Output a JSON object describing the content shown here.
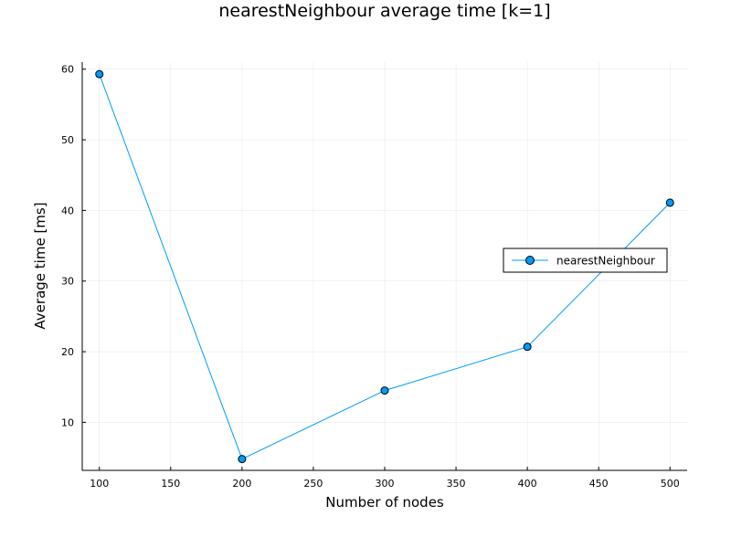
{
  "chart_data": {
    "type": "line",
    "title": "nearestNeighbour average time [k=1]",
    "xlabel": "Number of nodes",
    "ylabel": "Average time [ms]",
    "xlim": [
      88,
      512
    ],
    "ylim": [
      3.2,
      61
    ],
    "xticks": [
      100,
      150,
      200,
      250,
      300,
      350,
      400,
      450,
      500
    ],
    "yticks": [
      10,
      20,
      30,
      40,
      50,
      60
    ],
    "grid": true,
    "legend_position": "right",
    "series": [
      {
        "name": "nearestNeighbour",
        "color": "#009af9",
        "marker": "circle",
        "x": [
          100,
          200,
          300,
          400,
          500
        ],
        "y": [
          59.3,
          4.8,
          14.5,
          20.7,
          41.1
        ]
      }
    ]
  }
}
